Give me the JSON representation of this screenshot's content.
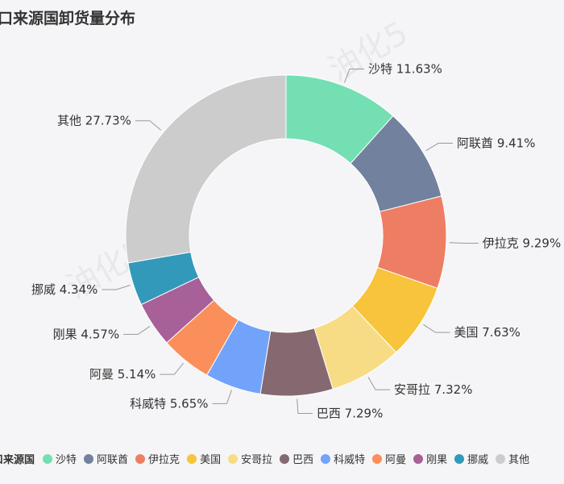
{
  "chart_data": {
    "type": "pie",
    "title": "进口来源国卸货量分布",
    "legend_title": "进口来源国",
    "legend_position": "bottom",
    "donut": true,
    "watermark": "油化5",
    "categories": [
      "沙特",
      "阿联酋",
      "伊拉克",
      "美国",
      "安哥拉",
      "巴西",
      "科威特",
      "阿曼",
      "刚果",
      "挪威",
      "其他"
    ],
    "values": [
      11.63,
      9.41,
      9.29,
      7.63,
      7.32,
      7.29,
      5.65,
      5.14,
      4.57,
      4.34,
      27.73
    ],
    "labels": [
      "沙特 11.63%",
      "阿联酋 9.41%",
      "伊拉克 9.29%",
      "美国 7.63%",
      "安哥拉 7.32%",
      "巴西 7.29%",
      "科威特 5.65%",
      "阿曼 5.14%",
      "刚果 4.57%",
      "挪威 4.34%",
      "其他 27.73%"
    ],
    "colors": [
      "#73dfb3",
      "#71819e",
      "#ee7e63",
      "#f7c43b",
      "#f7dc85",
      "#866970",
      "#72a3fb",
      "#fb8f5b",
      "#a86098",
      "#3399ba",
      "#cccccc"
    ]
  }
}
